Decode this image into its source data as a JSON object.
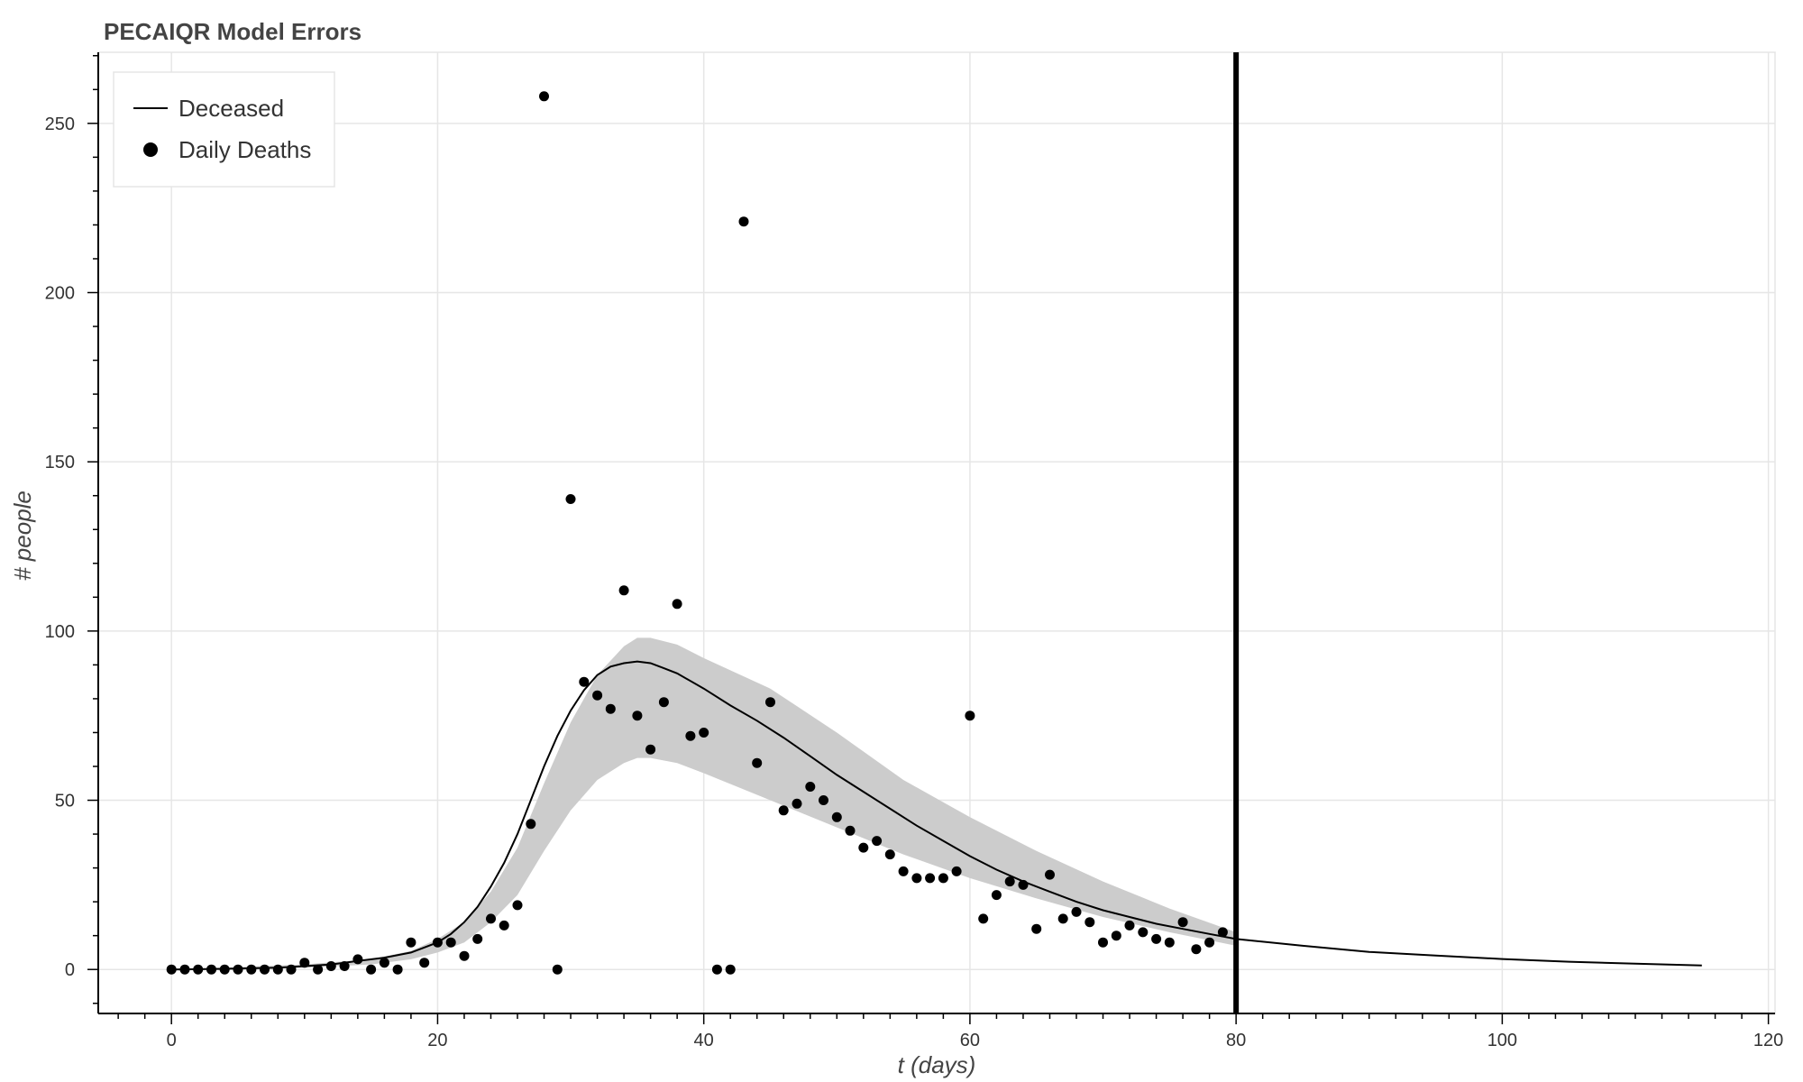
{
  "chart_data": {
    "type": "line",
    "title": "PECAIQR Model Errors",
    "xlabel": "t (days)",
    "ylabel": "# people",
    "xlim": [
      -5.5,
      120.5
    ],
    "ylim": [
      -13,
      271
    ],
    "x_ticks": [
      0,
      20,
      40,
      60,
      80,
      100,
      120
    ],
    "y_ticks": [
      0,
      50,
      100,
      150,
      200,
      250
    ],
    "x_tick_labels": [
      "0",
      "20",
      "40",
      "60",
      "80",
      "100",
      "120"
    ],
    "y_tick_labels": [
      "0",
      "50",
      "100",
      "150",
      "200",
      "250"
    ],
    "grid": true,
    "legend_position": "top-left",
    "vertical_marker": {
      "x": 80,
      "color": "#000000"
    },
    "series": [
      {
        "name": "Deceased",
        "kind": "line",
        "color": "#000000",
        "x": [
          0,
          4,
          8,
          10,
          12,
          14,
          16,
          18,
          19,
          20,
          21,
          22,
          23,
          24,
          25,
          26,
          27,
          28,
          29,
          30,
          31,
          32,
          33,
          34,
          35,
          36,
          37,
          38,
          40,
          42,
          44,
          46,
          48,
          50,
          52,
          54,
          56,
          58,
          60,
          62,
          64,
          66,
          68,
          70,
          72,
          74,
          76,
          78,
          80,
          85,
          90,
          95,
          100,
          105,
          110,
          115
        ],
        "y": [
          0,
          0.2,
          0.5,
          1,
          1.5,
          2.5,
          3.5,
          5,
          6.5,
          8,
          10.5,
          14,
          18.5,
          24.5,
          31.5,
          40,
          50,
          60,
          69,
          76.5,
          82.5,
          87,
          89.5,
          90.5,
          91,
          90.5,
          89,
          87.5,
          83,
          78,
          73.5,
          68.5,
          63,
          57.5,
          52.5,
          47.5,
          42.5,
          38,
          33.5,
          29.5,
          26,
          23,
          20,
          17.5,
          15.5,
          13.5,
          12,
          10.5,
          9,
          7,
          5.2,
          4.1,
          3.1,
          2.3,
          1.7,
          1.2
        ]
      },
      {
        "name": "Daily Deaths",
        "kind": "scatter",
        "color": "#000000",
        "x": [
          0,
          1,
          2,
          3,
          4,
          5,
          6,
          7,
          8,
          9,
          10,
          11,
          12,
          13,
          14,
          15,
          16,
          17,
          18,
          19,
          20,
          21,
          22,
          23,
          24,
          25,
          26,
          27,
          28,
          29,
          30,
          31,
          32,
          33,
          34,
          35,
          36,
          37,
          38,
          39,
          40,
          41,
          42,
          43,
          44,
          45,
          46,
          47,
          48,
          49,
          50,
          51,
          52,
          53,
          54,
          55,
          56,
          57,
          58,
          59,
          60,
          61,
          62,
          63,
          64,
          65,
          66,
          67,
          68,
          69,
          70,
          71,
          72,
          73,
          74,
          75,
          76,
          77,
          78,
          79
        ],
        "y": [
          0,
          0,
          0,
          0,
          0,
          0,
          0,
          0,
          0,
          0,
          2,
          0,
          1,
          1,
          3,
          0,
          2,
          0,
          8,
          2,
          8,
          8,
          4,
          9,
          15,
          13,
          19,
          43,
          258,
          0,
          139,
          85,
          81,
          77,
          112,
          75,
          65,
          79,
          108,
          69,
          70,
          0,
          0,
          221,
          61,
          79,
          47,
          49,
          54,
          50,
          45,
          41,
          36,
          38,
          34,
          29,
          27,
          27,
          27,
          29,
          75,
          15,
          22,
          26,
          25,
          12,
          28,
          15,
          17,
          14,
          8,
          10,
          13,
          11,
          9,
          8,
          14,
          6,
          8,
          11
        ]
      }
    ],
    "uncertainty_band": {
      "color": "#cccccc",
      "x": [
        0,
        10,
        15,
        18,
        20,
        22,
        24,
        26,
        28,
        30,
        32,
        34,
        35,
        36,
        38,
        40,
        45,
        50,
        55,
        60,
        65,
        70,
        75,
        80
      ],
      "lower": [
        0,
        0.5,
        1.5,
        3,
        5,
        8,
        14,
        22,
        35,
        47,
        56,
        61,
        62.5,
        62.5,
        61,
        58,
        50,
        42,
        34,
        27,
        21,
        15.5,
        11,
        7
      ],
      "upper": [
        0,
        1.5,
        3,
        5.5,
        9,
        14,
        23,
        36,
        55,
        73,
        87,
        95.5,
        98,
        98,
        96,
        92,
        83,
        70,
        56,
        45,
        35,
        26,
        18,
        11
      ]
    }
  }
}
